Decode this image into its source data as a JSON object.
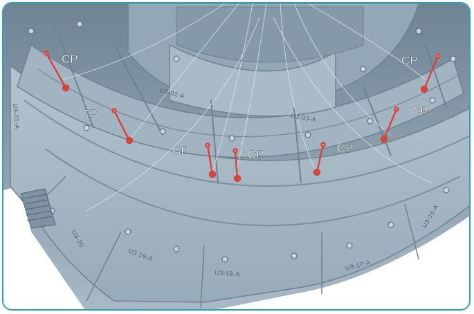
{
  "colors": {
    "frame_border": "#2aa3c0",
    "metal": "#8fa3b3",
    "metal_light": "#b6c5d0",
    "metal_dark": "#5f7383",
    "probe_red": "#d6453e",
    "label_white": "#ffffff"
  },
  "callouts": [
    {
      "id": "cp-1",
      "text": "CP"
    },
    {
      "id": "cp-2",
      "text": "CP"
    },
    {
      "id": "cp-3",
      "text": "CP"
    },
    {
      "id": "cp-4",
      "text": "CP"
    },
    {
      "id": "cp-5",
      "text": "CP"
    },
    {
      "id": "cp-6",
      "text": "CP"
    },
    {
      "id": "cp-7",
      "text": "CP"
    }
  ],
  "plate_labels": [
    {
      "id": "u3-19-a",
      "text": "U3-19-A"
    },
    {
      "id": "u3-18-a",
      "text": "U3-18-A"
    },
    {
      "id": "u3-17-a",
      "text": "U3-17-A"
    },
    {
      "id": "u3-16-a",
      "text": "U3-16-A"
    },
    {
      "id": "u3-20",
      "text": "U3-20"
    },
    {
      "id": "u3-01-a",
      "text": "U3-01-A"
    },
    {
      "id": "u3-02-a",
      "text": "U3-02-A"
    },
    {
      "id": "u3-03-a",
      "text": "U3-03-A"
    }
  ]
}
